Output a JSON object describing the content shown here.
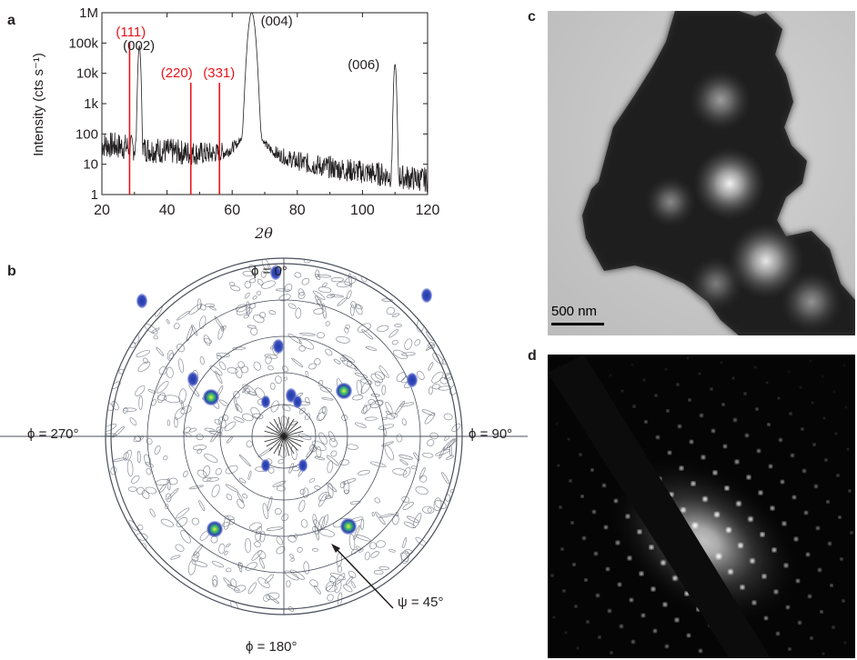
{
  "panels": {
    "a": "a",
    "b": "b",
    "c": "c",
    "d": "d"
  },
  "chart_data": {
    "type": "line",
    "xlabel": "2θ",
    "ylabel": "Intensity (cts s⁻¹)",
    "xlim": [
      20,
      120
    ],
    "ylim": [
      1,
      1000000
    ],
    "log_y": true,
    "x_ticks": [
      "20",
      "40",
      "60",
      "80",
      "100",
      "120"
    ],
    "y_ticks": [
      "1",
      "10",
      "100",
      "1k",
      "10k",
      "100k",
      "1M"
    ],
    "peaks": [
      {
        "label": "(002)",
        "x": 31.5,
        "y": 80000,
        "color": "#231f20"
      },
      {
        "label": "(004)",
        "x": 66,
        "y": 1000000,
        "color": "#231f20"
      },
      {
        "label": "(006)",
        "x": 110,
        "y": 20000,
        "color": "#231f20"
      }
    ],
    "reference_lines": [
      {
        "label": "(111)",
        "x": 28.5,
        "color": "#e8141b"
      },
      {
        "label": "(220)",
        "x": 47.3,
        "color": "#e8141b"
      },
      {
        "label": "(331)",
        "x": 56.1,
        "color": "#e8141b"
      }
    ],
    "background_level": {
      "x_start": 20,
      "y_start": 50,
      "x_end": 120,
      "y_end": 3
    }
  },
  "pole_figure": {
    "top_label": "ϕ = 0°",
    "bottom_label": "ϕ = 180°",
    "left_label": "ϕ = 270°",
    "right_label": "ϕ = 90°",
    "psi_label": "ψ = 45°"
  },
  "tem": {
    "scale_label": "500 nm"
  }
}
